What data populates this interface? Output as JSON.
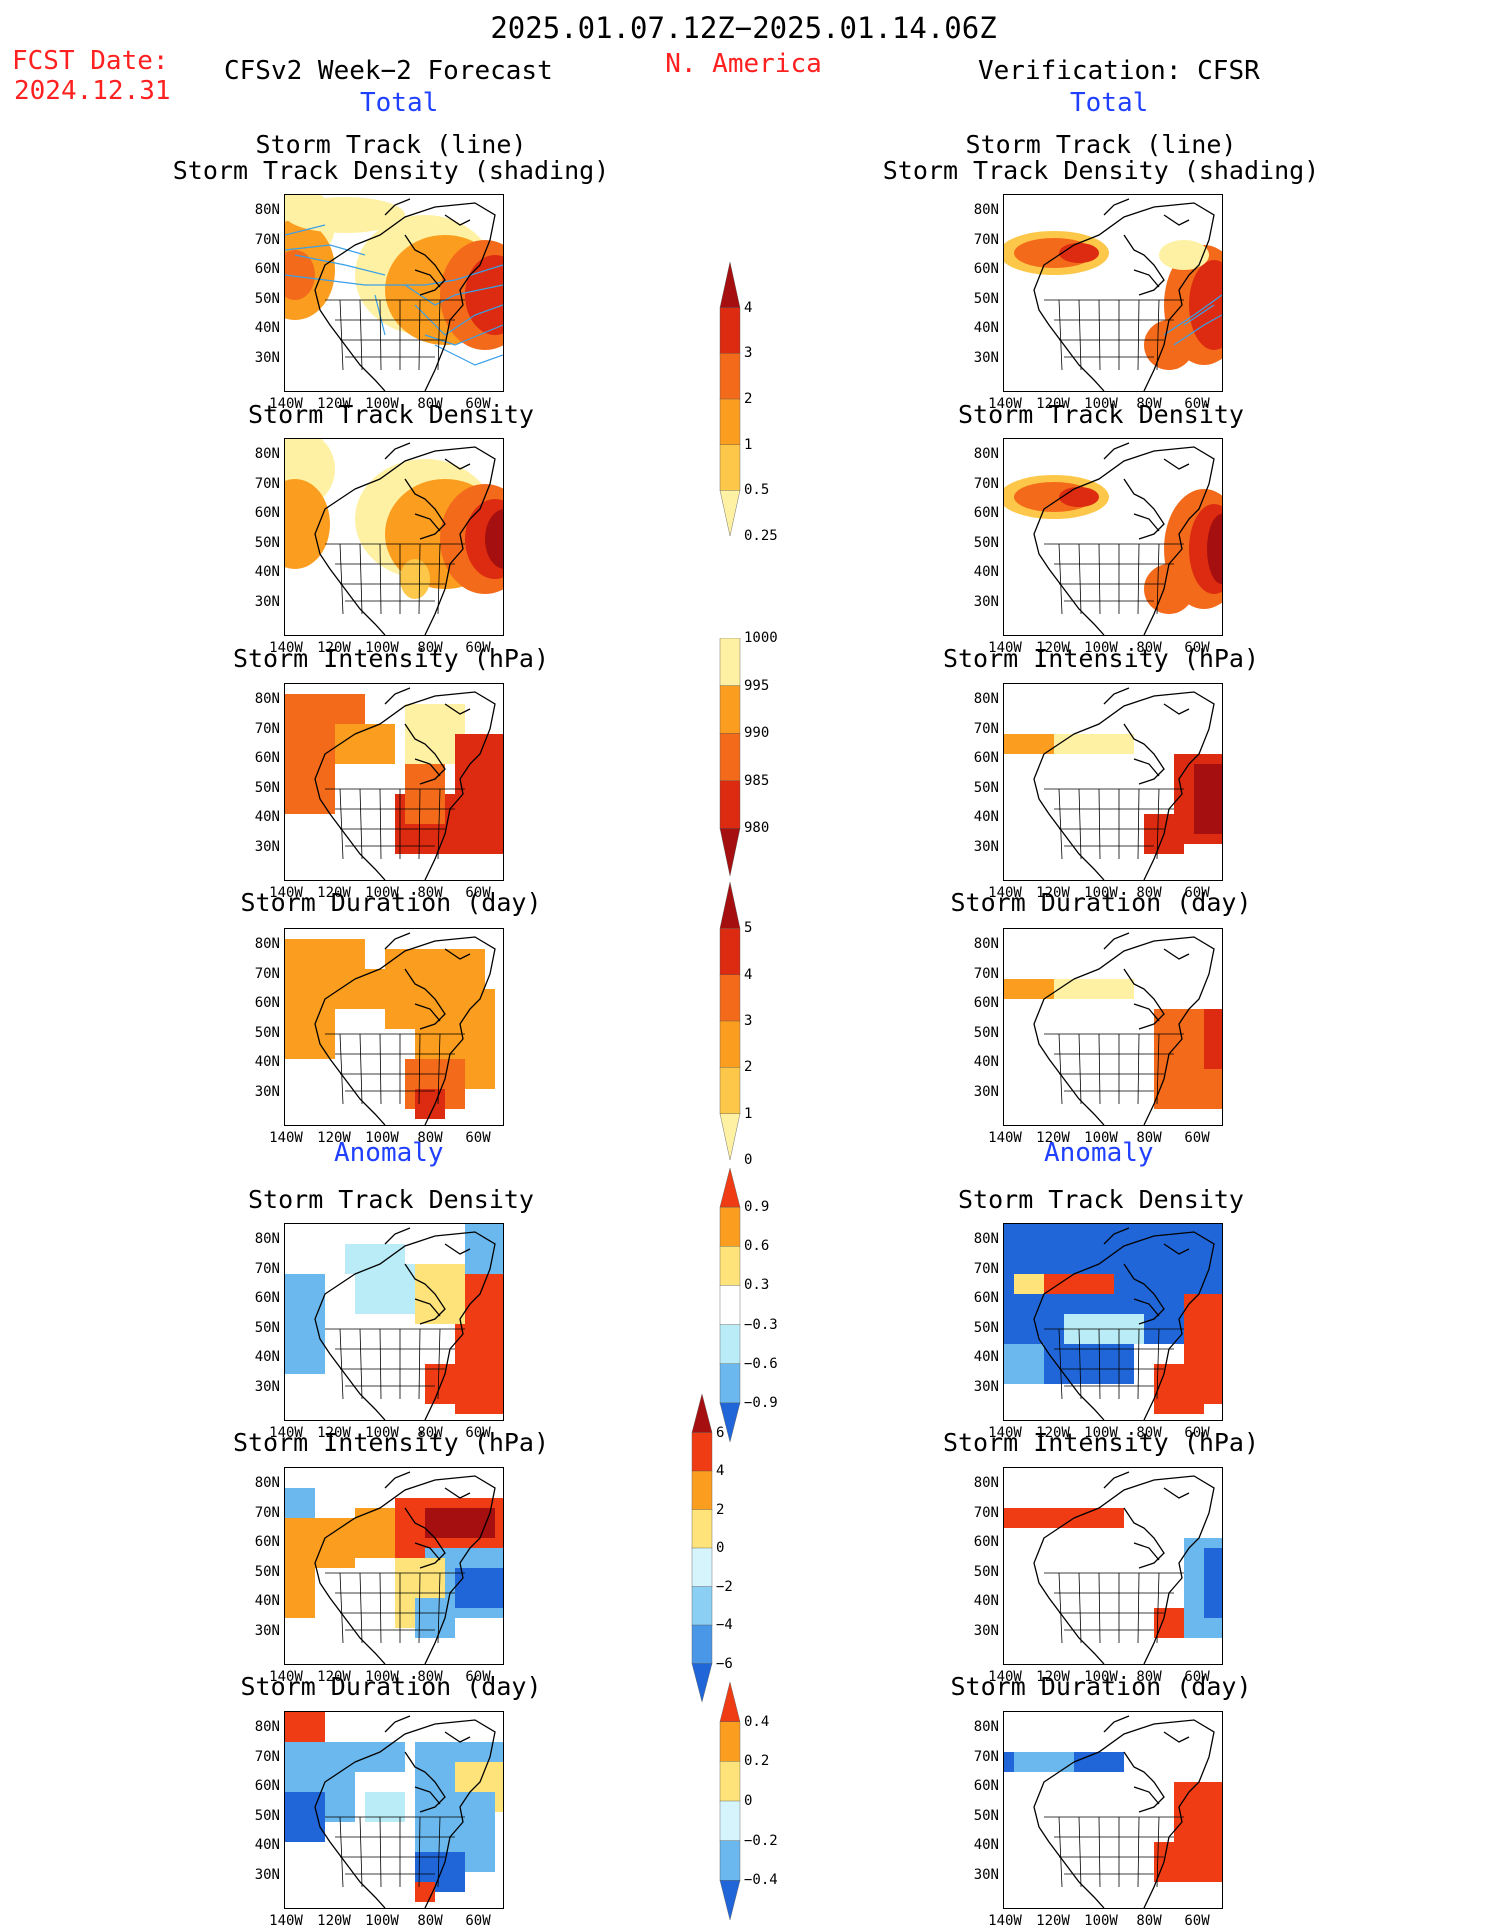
{
  "header": {
    "period": "2025.01.07.12Z−2025.01.14.06Z",
    "region": "N. America",
    "fcst_label": "FCST Date:",
    "fcst_date": "2024.12.31",
    "left_title": "CFSv2 Week−2 Forecast",
    "right_title": "Verification: CFSR",
    "total_label": "Total",
    "anomaly_label": "Anomaly"
  },
  "panels": {
    "storm_track_line": "Storm Track (line)",
    "storm_track_shading": "Storm Track Density (shading)",
    "storm_track_density": "Storm Track Density",
    "storm_intensity": "Storm Intensity (hPa)",
    "storm_duration": "Storm Duration (day)"
  },
  "axes": {
    "lat_ticks": [
      "80N",
      "70N",
      "60N",
      "50N",
      "40N",
      "30N"
    ],
    "lon_ticks": [
      "140W",
      "120W",
      "100W",
      "80W",
      "60W"
    ]
  },
  "colorbars": {
    "density": {
      "labels": [
        "4",
        "3",
        "2",
        "1",
        "0.5",
        "0.25"
      ],
      "colors": [
        "#a50f0f",
        "#dc2b10",
        "#f36a1a",
        "#fb9d1e",
        "#fdc84a",
        "#fff1a3"
      ]
    },
    "intensity": {
      "labels": [
        "1000",
        "995",
        "990",
        "985",
        "980"
      ],
      "colors": [
        "#fff1a3",
        "#fb9d1e",
        "#f36a1a",
        "#dc2b10",
        "#a50f0f"
      ]
    },
    "duration": {
      "labels": [
        "5",
        "4",
        "3",
        "2",
        "1",
        "0"
      ],
      "colors": [
        "#a50f0f",
        "#dc2b10",
        "#f36a1a",
        "#fb9d1e",
        "#fdc84a",
        "#fff1a3"
      ]
    },
    "anom_density": {
      "labels": [
        "0.9",
        "0.6",
        "0.3",
        "−0.3",
        "−0.6",
        "−0.9"
      ],
      "colors": [
        "#f03c14",
        "#fb9d1e",
        "#fde37a",
        "#ffffff",
        "#b9ecf7",
        "#6ab8ee",
        "#2166d8"
      ]
    },
    "anom_intensity": {
      "labels": [
        "6",
        "4",
        "2",
        "0",
        "−2",
        "−4",
        "−6"
      ],
      "colors": [
        "#a50f0f",
        "#f03c14",
        "#fb9d1e",
        "#fde37a",
        "#d6f4fb",
        "#8ccff4",
        "#4a97e8",
        "#2166d8"
      ]
    },
    "anom_duration": {
      "labels": [
        "0.4",
        "0.2",
        "0",
        "−0.2",
        "−0.4"
      ],
      "colors": [
        "#f03c14",
        "#fb9d1e",
        "#fde37a",
        "#d6f4fb",
        "#6ab8ee",
        "#2166d8"
      ]
    }
  }
}
